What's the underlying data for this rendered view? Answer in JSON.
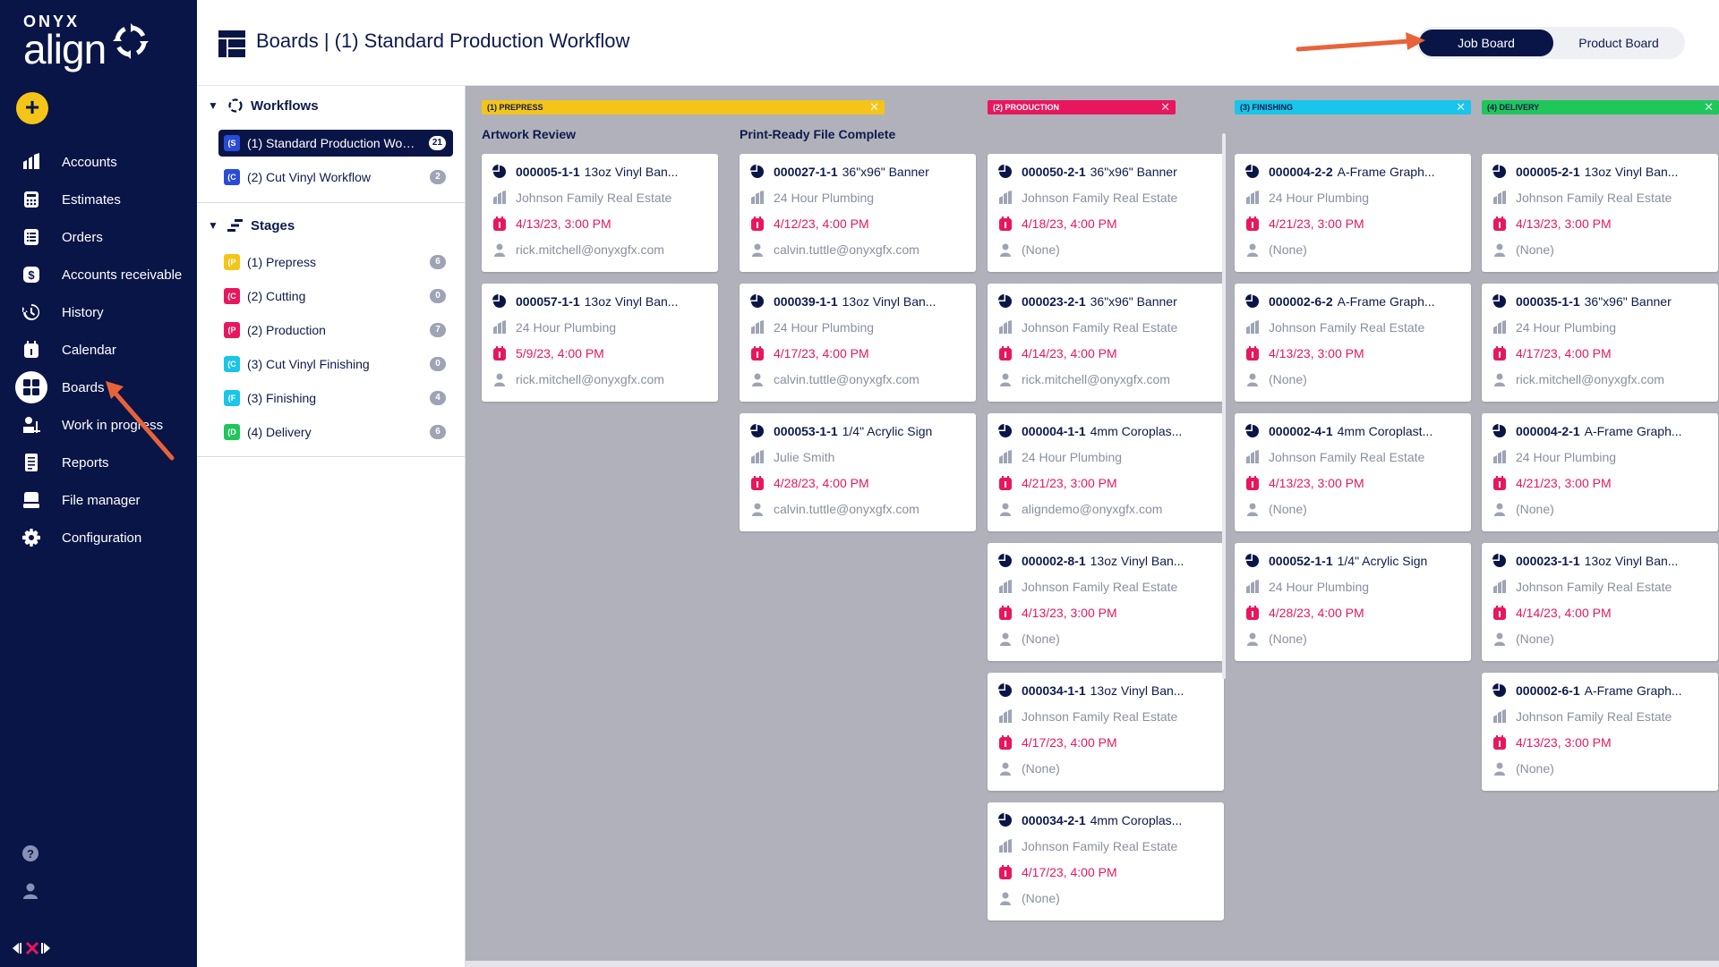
{
  "nav": {
    "brand_top": "ONYX",
    "brand_main": "align",
    "items": [
      {
        "label": "Accounts",
        "icon": "bar-chart-icon"
      },
      {
        "label": "Estimates",
        "icon": "calculator-icon"
      },
      {
        "label": "Orders",
        "icon": "orders-icon"
      },
      {
        "label": "Accounts receivable",
        "icon": "dollar-icon"
      },
      {
        "label": "History",
        "icon": "history-icon"
      },
      {
        "label": "Calendar",
        "icon": "calendar-icon"
      },
      {
        "label": "Boards",
        "icon": "boards-icon",
        "active": true
      },
      {
        "label": "Work in progress",
        "icon": "work-in-progress-icon"
      },
      {
        "label": "Reports",
        "icon": "reports-icon"
      },
      {
        "label": "File manager",
        "icon": "file-manager-icon"
      },
      {
        "label": "Configuration",
        "icon": "gear-icon"
      }
    ]
  },
  "header": {
    "title": "Boards | (1) Standard Production Workflow",
    "toggle": {
      "job": "Job Board",
      "product": "Product Board",
      "selected": "Job Board"
    }
  },
  "side": {
    "workflows_title": "Workflows",
    "workflows": [
      {
        "tag": "(S",
        "name": "(1) Standard Production Workflow",
        "count": "21",
        "color": "#2a4bd7",
        "active": true
      },
      {
        "tag": "(C",
        "name": "(2) Cut Vinyl Workflow",
        "count": "2",
        "color": "#2a4bd7"
      }
    ],
    "stages_title": "Stages",
    "stages": [
      {
        "tag": "(P",
        "name": "(1) Prepress",
        "count": "6",
        "color": "#f4c518"
      },
      {
        "tag": "(C",
        "name": "(2) Cutting",
        "count": "0",
        "color": "#e8175d"
      },
      {
        "tag": "(P",
        "name": "(2) Production",
        "count": "7",
        "color": "#e8175d"
      },
      {
        "tag": "(C",
        "name": "(3) Cut Vinyl Finishing",
        "count": "0",
        "color": "#19c5e8"
      },
      {
        "tag": "(F",
        "name": "(3) Finishing",
        "count": "4",
        "color": "#19c5e8"
      },
      {
        "tag": "(D",
        "name": "(4) Delivery",
        "count": "6",
        "color": "#1fc65a"
      }
    ]
  },
  "board": {
    "stages": [
      {
        "label": "(1) PREPRESS",
        "color": "#f4c518"
      },
      {
        "label": "(2) PRODUCTION",
        "color": "#e8175d"
      },
      {
        "label": "(3) FINISHING",
        "color": "#19c5e8"
      },
      {
        "label": "(4) DELIVERY",
        "color": "#1fc65a"
      }
    ],
    "column_headers": [
      "Artwork Review",
      "Print-Ready File Complete"
    ],
    "columns": [
      [
        {
          "id": "000005-1-1",
          "product": "13oz Vinyl Ban...",
          "account": "Johnson Family Real Estate",
          "due": "4/13/23, 3:00 PM",
          "assignee": "rick.mitchell@onyxgfx.com"
        },
        {
          "id": "000057-1-1",
          "product": "13oz Vinyl Ban...",
          "account": "24 Hour Plumbing",
          "due": "5/9/23, 4:00 PM",
          "assignee": "rick.mitchell@onyxgfx.com"
        }
      ],
      [
        {
          "id": "000027-1-1",
          "product": "36\"x96\" Banner",
          "account": "24 Hour Plumbing",
          "due": "4/12/23, 4:00 PM",
          "assignee": "calvin.tuttle@onyxgfx.com"
        },
        {
          "id": "000039-1-1",
          "product": "13oz Vinyl Ban...",
          "account": "24 Hour Plumbing",
          "due": "4/17/23, 4:00 PM",
          "assignee": "calvin.tuttle@onyxgfx.com"
        },
        {
          "id": "000053-1-1",
          "product": "1/4\" Acrylic Sign",
          "account": "Julie Smith",
          "due": "4/28/23, 4:00 PM",
          "assignee": "calvin.tuttle@onyxgfx.com"
        }
      ],
      [
        {
          "id": "000050-2-1",
          "product": "36\"x96\" Banner",
          "account": "Johnson Family Real Estate",
          "due": "4/18/23, 4:00 PM",
          "assignee": "(None)"
        },
        {
          "id": "000023-2-1",
          "product": "36\"x96\" Banner",
          "account": "Johnson Family Real Estate",
          "due": "4/14/23, 4:00 PM",
          "assignee": "rick.mitchell@onyxgfx.com"
        },
        {
          "id": "000004-1-1",
          "product": "4mm Coroplas...",
          "account": "24 Hour Plumbing",
          "due": "4/21/23, 3:00 PM",
          "assignee": "aligndemo@onyxgfx.com"
        },
        {
          "id": "000002-8-1",
          "product": "13oz Vinyl Ban...",
          "account": "Johnson Family Real Estate",
          "due": "4/13/23, 3:00 PM",
          "assignee": "(None)"
        },
        {
          "id": "000034-1-1",
          "product": "13oz Vinyl Ban...",
          "account": "Johnson Family Real Estate",
          "due": "4/17/23, 4:00 PM",
          "assignee": "(None)"
        },
        {
          "id": "000034-2-1",
          "product": "4mm Coroplas...",
          "account": "Johnson Family Real Estate",
          "due": "4/17/23, 4:00 PM",
          "assignee": "(None)"
        }
      ],
      [
        {
          "id": "000004-2-2",
          "product": "A-Frame Graph...",
          "account": "24 Hour Plumbing",
          "due": "4/21/23, 3:00 PM",
          "assignee": "(None)"
        },
        {
          "id": "000002-6-2",
          "product": "A-Frame Graph...",
          "account": "Johnson Family Real Estate",
          "due": "4/13/23, 3:00 PM",
          "assignee": "(None)"
        },
        {
          "id": "000002-4-1",
          "product": "4mm Coroplast...",
          "account": "Johnson Family Real Estate",
          "due": "4/13/23, 3:00 PM",
          "assignee": "(None)"
        },
        {
          "id": "000052-1-1",
          "product": "1/4\" Acrylic Sign",
          "account": "24 Hour Plumbing",
          "due": "4/28/23, 4:00 PM",
          "assignee": "(None)"
        }
      ],
      [
        {
          "id": "000005-2-1",
          "product": "13oz Vinyl Ban...",
          "account": "Johnson Family Real Estate",
          "due": "4/13/23, 3:00 PM",
          "assignee": "(None)"
        },
        {
          "id": "000035-1-1",
          "product": "36\"x96\" Banner",
          "account": "24 Hour Plumbing",
          "due": "4/17/23, 4:00 PM",
          "assignee": "rick.mitchell@onyxgfx.com"
        },
        {
          "id": "000004-2-1",
          "product": "A-Frame Graph...",
          "account": "24 Hour Plumbing",
          "due": "4/21/23, 3:00 PM",
          "assignee": "(None)"
        },
        {
          "id": "000023-1-1",
          "product": "13oz Vinyl Ban...",
          "account": "Johnson Family Real Estate",
          "due": "4/14/23, 4:00 PM",
          "assignee": "(None)"
        },
        {
          "id": "000002-6-1",
          "product": "A-Frame Graph...",
          "account": "Johnson Family Real Estate",
          "due": "4/13/23, 3:00 PM",
          "assignee": "(None)"
        }
      ]
    ]
  }
}
